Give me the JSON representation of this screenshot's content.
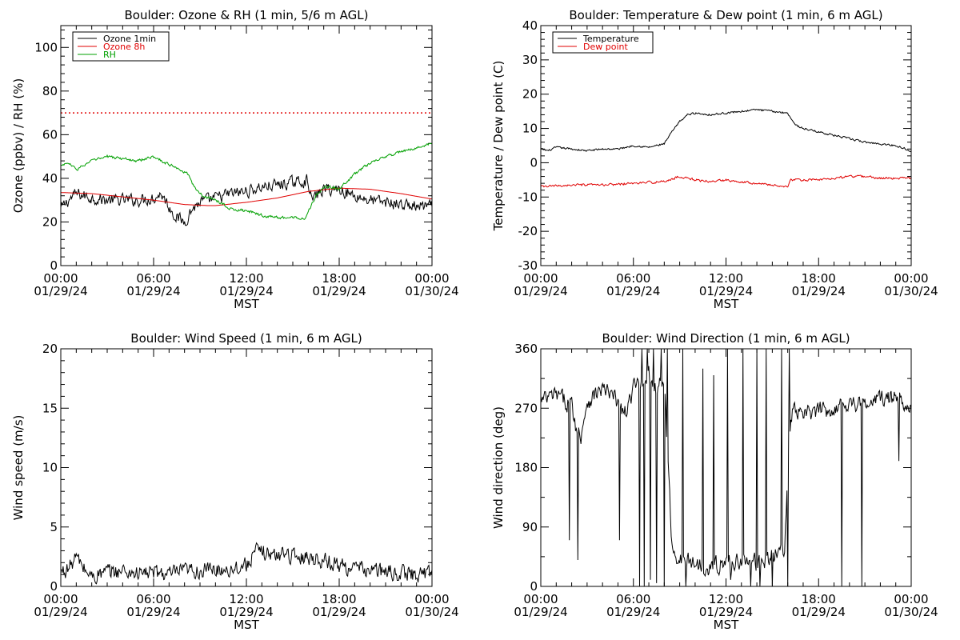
{
  "page": {
    "background": "#ffffff"
  },
  "colors": {
    "black": "#000000",
    "red": "#e00000",
    "green": "#00a000"
  },
  "chart_data": [
    {
      "id": "ozone_rh",
      "type": "line",
      "title": "Boulder: Ozone & RH (1 min, 5/6 m AGL)",
      "xlabel": "MST",
      "ylabel": "Ozone (ppbv) / RH (%)",
      "xlim": [
        "01/29/24 00:00",
        "01/30/24 00:00"
      ],
      "ylim": [
        0,
        110
      ],
      "yticks": [
        0,
        20,
        40,
        60,
        80,
        100
      ],
      "xtick_times": [
        "00:00",
        "06:00",
        "12:00",
        "18:00",
        "00:00"
      ],
      "xtick_dates": [
        "01/29/24",
        "01/29/24",
        "01/29/24",
        "01/29/24",
        "01/30/24"
      ],
      "legend": {
        "placement": "top-left",
        "entries": [
          {
            "label": "Ozone 1min",
            "color": "#000000"
          },
          {
            "label": "Ozone 8h",
            "color": "#e00000"
          },
          {
            "label": "RH",
            "color": "#00a000"
          }
        ]
      },
      "reference_line": {
        "y": 70,
        "color": "#e00000",
        "style": "dotted"
      },
      "series": [
        {
          "name": "Ozone 1min",
          "color": "#000000",
          "noise": 2.5,
          "x": [
            0,
            0.5,
            1,
            2,
            3,
            4,
            5,
            6,
            6.5,
            7,
            7.5,
            8,
            8.5,
            9,
            10,
            11,
            12,
            13,
            14,
            15,
            16,
            16.2,
            16.5,
            17,
            18,
            19,
            20,
            21,
            22,
            23,
            24
          ],
          "y": [
            26,
            30,
            33,
            31,
            30,
            30,
            30,
            31,
            33,
            27,
            22,
            20,
            26,
            29,
            31,
            33,
            34,
            36,
            37,
            38,
            39,
            30,
            32,
            35,
            35,
            32,
            30,
            29,
            28,
            27,
            27
          ]
        },
        {
          "name": "Ozone 8h",
          "color": "#e00000",
          "noise": 0,
          "x": [
            0,
            2,
            4,
            6,
            8,
            9.5,
            10,
            12,
            14,
            16,
            18,
            20,
            22,
            24
          ],
          "y": [
            33.5,
            33,
            31.5,
            30,
            28,
            27.5,
            27.5,
            29,
            31,
            34,
            35.5,
            35,
            33,
            30.5
          ]
        },
        {
          "name": "RH",
          "color": "#00a000",
          "noise": 0.6,
          "x": [
            0,
            0.5,
            1,
            2,
            3,
            4,
            5,
            6,
            6.8,
            7.5,
            8.2,
            8.7,
            9.2,
            10,
            11,
            12,
            13,
            14,
            15,
            15.8,
            16.5,
            17,
            17.5,
            18,
            19,
            20,
            21,
            22,
            23,
            24
          ],
          "y": [
            46,
            47,
            44,
            48,
            50,
            49,
            48,
            50,
            47,
            45,
            42,
            35,
            32,
            30,
            26,
            25,
            23,
            22,
            22,
            22,
            32,
            36,
            36,
            35,
            42,
            47,
            50,
            52,
            54,
            56
          ]
        }
      ]
    },
    {
      "id": "temp_dew",
      "type": "line",
      "title": "Boulder: Temperature & Dew point (1 min, 6 m AGL)",
      "xlabel": "MST",
      "ylabel": "Temperature / Dew point (C)",
      "xlim": [
        "01/29/24 00:00",
        "01/30/24 00:00"
      ],
      "ylim": [
        -30,
        40
      ],
      "yticks": [
        -30,
        -20,
        -10,
        0,
        10,
        20,
        30,
        40
      ],
      "xtick_times": [
        "00:00",
        "06:00",
        "12:00",
        "18:00",
        "00:00"
      ],
      "xtick_dates": [
        "01/29/24",
        "01/29/24",
        "01/29/24",
        "01/29/24",
        "01/30/24"
      ],
      "legend": {
        "placement": "top-left",
        "entries": [
          {
            "label": "Temperature",
            "color": "#000000"
          },
          {
            "label": "Dew point",
            "color": "#e00000"
          }
        ]
      },
      "series": [
        {
          "name": "Temperature",
          "color": "#000000",
          "noise": 0.25,
          "x": [
            0,
            0.5,
            1,
            2,
            3,
            4,
            5,
            6,
            7,
            8,
            8.5,
            9,
            9.5,
            10,
            11,
            12,
            13,
            14,
            15,
            16,
            16.5,
            17,
            18,
            19,
            20,
            21,
            22,
            23,
            24
          ],
          "y": [
            4,
            3.5,
            4.5,
            4,
            3.5,
            4,
            4,
            5,
            4.5,
            5.5,
            9,
            12,
            14,
            14.5,
            14,
            14.5,
            15,
            15.5,
            15,
            14.5,
            11,
            10,
            9,
            8,
            7,
            6,
            5.5,
            5,
            3.5
          ]
        },
        {
          "name": "Dew point",
          "color": "#e00000",
          "noise": 0.3,
          "x": [
            0,
            2,
            4,
            6,
            8,
            9,
            9.5,
            10,
            11,
            12,
            14,
            16,
            16.2,
            17,
            18,
            19,
            20,
            21,
            22,
            23,
            24
          ],
          "y": [
            -7,
            -6.5,
            -6.5,
            -6,
            -5.5,
            -4,
            -4.5,
            -5,
            -5.5,
            -5,
            -6,
            -7,
            -5,
            -5,
            -5,
            -4.5,
            -4,
            -4,
            -4.5,
            -4.5,
            -4.5
          ]
        }
      ]
    },
    {
      "id": "wind_speed",
      "type": "line",
      "title": "Boulder: Wind Speed (1 min, 6 m AGL)",
      "xlabel": "MST",
      "ylabel": "Wind speed (m/s)",
      "xlim": [
        "01/29/24 00:00",
        "01/30/24 00:00"
      ],
      "ylim": [
        0,
        20
      ],
      "yticks": [
        0,
        5,
        10,
        15,
        20
      ],
      "xtick_times": [
        "00:00",
        "06:00",
        "12:00",
        "18:00",
        "00:00"
      ],
      "xtick_dates": [
        "01/29/24",
        "01/29/24",
        "01/29/24",
        "01/29/24",
        "01/30/24"
      ],
      "series": [
        {
          "name": "Wind speed",
          "color": "#000000",
          "noise": 0.6,
          "x": [
            0,
            0.5,
            1,
            1.5,
            2,
            3,
            4,
            5,
            6,
            7,
            8,
            9,
            10,
            11,
            12,
            12.5,
            13,
            14,
            14.5,
            15,
            16,
            17,
            18,
            19,
            20,
            21,
            22,
            23,
            24
          ],
          "y": [
            1.2,
            1.5,
            2.5,
            1.5,
            0.8,
            1.2,
            1.3,
            1.1,
            1.2,
            1.0,
            1.3,
            1.3,
            1.4,
            1.5,
            1.8,
            2.8,
            3,
            2.5,
            3,
            2.5,
            2.5,
            2.2,
            1.8,
            1.5,
            1.4,
            1.2,
            1.1,
            1.0,
            1.2
          ]
        }
      ]
    },
    {
      "id": "wind_dir",
      "type": "line",
      "title": "Boulder: Wind Direction (1 min, 6 m AGL)",
      "xlabel": "MST",
      "ylabel": "Wind direction (deg)",
      "xlim": [
        "01/29/24 00:00",
        "01/30/24 00:00"
      ],
      "ylim": [
        0,
        360
      ],
      "yticks": [
        0,
        90,
        180,
        270,
        360
      ],
      "xtick_times": [
        "00:00",
        "06:00",
        "12:00",
        "18:00",
        "00:00"
      ],
      "xtick_dates": [
        "01/29/24",
        "01/29/24",
        "01/29/24",
        "01/29/24",
        "01/30/24"
      ],
      "series": [
        {
          "name": "Wind direction",
          "color": "#000000",
          "noise": 12,
          "x": [
            0,
            1,
            2,
            2.3,
            2.6,
            3,
            4,
            5,
            5.5,
            6,
            6.5,
            7,
            7.5,
            8,
            8.5,
            9,
            10,
            11,
            12,
            13,
            14,
            15,
            15.8,
            16.2,
            17,
            18,
            19,
            20,
            21,
            22,
            23,
            24
          ],
          "y": [
            280,
            290,
            275,
            240,
            230,
            280,
            300,
            280,
            260,
            300,
            310,
            320,
            300,
            310,
            60,
            40,
            35,
            30,
            35,
            40,
            35,
            45,
            60,
            265,
            260,
            265,
            270,
            280,
            275,
            285,
            285,
            275
          ],
          "spikes": [
            {
              "x": 1.85,
              "y": 70
            },
            {
              "x": 2.4,
              "y": 40
            },
            {
              "x": 5.1,
              "y": 70
            },
            {
              "x": 6.4,
              "y": 0
            },
            {
              "x": 6.55,
              "y": 360
            },
            {
              "x": 6.7,
              "y": 0
            },
            {
              "x": 6.9,
              "y": 360
            },
            {
              "x": 7.1,
              "y": 10
            },
            {
              "x": 7.3,
              "y": 360
            },
            {
              "x": 7.5,
              "y": 5
            },
            {
              "x": 7.8,
              "y": 360
            },
            {
              "x": 8.0,
              "y": 0
            },
            {
              "x": 8.2,
              "y": 360
            },
            {
              "x": 9.2,
              "y": 360
            },
            {
              "x": 9.4,
              "y": 0
            },
            {
              "x": 10.5,
              "y": 330
            },
            {
              "x": 11.2,
              "y": 320
            },
            {
              "x": 12.1,
              "y": 360
            },
            {
              "x": 12.3,
              "y": 10
            },
            {
              "x": 13.1,
              "y": 360
            },
            {
              "x": 13.6,
              "y": 0
            },
            {
              "x": 14.0,
              "y": 360
            },
            {
              "x": 14.2,
              "y": 0
            },
            {
              "x": 14.6,
              "y": 360
            },
            {
              "x": 15.0,
              "y": 0
            },
            {
              "x": 15.6,
              "y": 360
            },
            {
              "x": 16.0,
              "y": 0
            },
            {
              "x": 16.1,
              "y": 360
            },
            {
              "x": 19.5,
              "y": 0
            },
            {
              "x": 20.8,
              "y": 0
            },
            {
              "x": 23.2,
              "y": 190
            }
          ]
        }
      ]
    }
  ]
}
